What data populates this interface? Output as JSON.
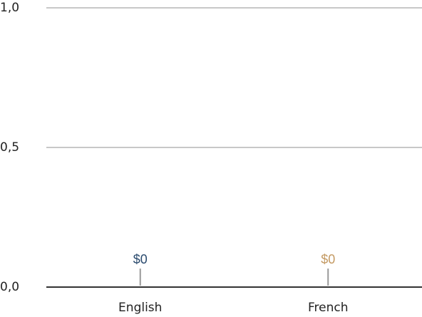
{
  "chart_data": {
    "type": "bar",
    "categories": [
      "English",
      "French"
    ],
    "values": [
      0,
      0
    ],
    "value_labels": [
      "$0",
      "$0"
    ],
    "colors": [
      "#2b4b6e",
      "#c49a63"
    ],
    "ylim": [
      0,
      1
    ],
    "yticks": [
      {
        "value": 0,
        "label": "0,0"
      },
      {
        "value": 0.5,
        "label": "0,5"
      },
      {
        "value": 1,
        "label": "1,0"
      }
    ],
    "grid": true
  }
}
